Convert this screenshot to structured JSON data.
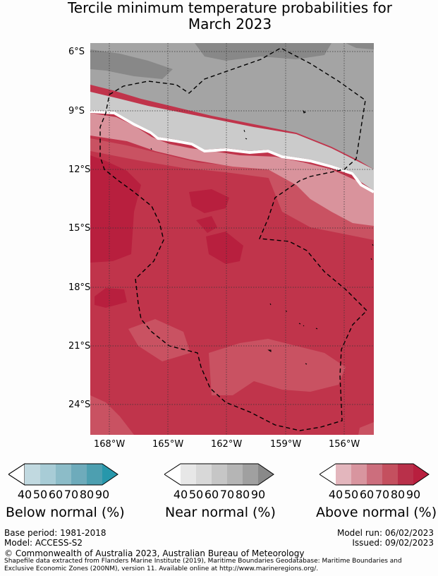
{
  "title": {
    "line1": "Tercile minimum temperature probabilities for",
    "line2": "March 2023"
  },
  "map": {
    "lat_labels": [
      "6°S",
      "9°S",
      "12°S",
      "15°S",
      "18°S",
      "21°S",
      "24°S"
    ],
    "lon_labels": [
      "168°W",
      "165°W",
      "162°W",
      "159°W",
      "156°W"
    ],
    "colors": {
      "grey_dark": "#888888",
      "grey_mid": "#a4a4a4",
      "grey_light": "#cbcbcb",
      "pink_light": "#d9939c",
      "red_60": "#c95262",
      "red_70": "#c0344b",
      "red_80": "#b81f3e"
    }
  },
  "legends": [
    {
      "title": "Below normal (%)",
      "ticks": [
        "40",
        "50",
        "60",
        "70",
        "80",
        "90"
      ],
      "colors": [
        "#c1d9e0",
        "#a8ccd6",
        "#8cbcc8",
        "#6eabbb",
        "#4d9fb0",
        "#2797ab"
      ]
    },
    {
      "title": "Near normal (%)",
      "ticks": [
        "40",
        "50",
        "60",
        "70",
        "80",
        "90"
      ],
      "colors": [
        "#e7e7e7",
        "#d8d8d8",
        "#c6c6c6",
        "#b5b5b5",
        "#a0a0a0",
        "#898989"
      ]
    },
    {
      "title": "Above normal (%)",
      "ticks": [
        "40",
        "50",
        "60",
        "70",
        "80",
        "90"
      ],
      "colors": [
        "#e3b6bd",
        "#d8959f",
        "#cc6e7d",
        "#c4505f",
        "#b9304a",
        "#b81f3e"
      ]
    }
  ],
  "footer": {
    "base_period": "Base period: 1981-2018",
    "model": "Model: ACCESS-S2",
    "model_run": "Model run: 06/02/2023",
    "issued": "Issued: 09/02/2023",
    "copyright": "© Commonwealth of Australia 2023, Australian Bureau of Meteorology",
    "shapefile": "Shapefile data extracted from Flanders Marine Institute (2019), Maritime Boundaries Geodatabase: Maritime Boundaries and Exclusive Economic Zones (200NM), version 11. Available online at http://www.marineregions.org/."
  }
}
